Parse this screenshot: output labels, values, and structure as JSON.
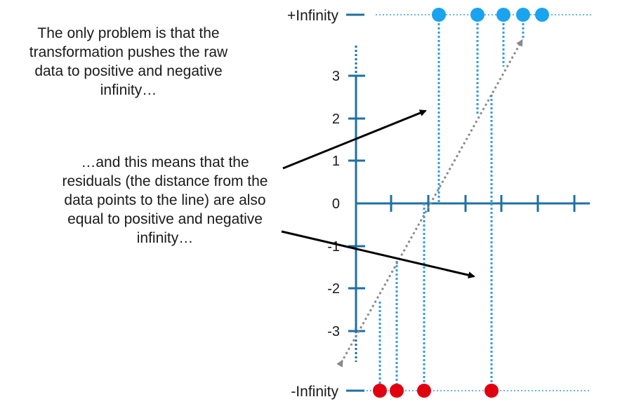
{
  "captions": {
    "top": "The only problem is that the\ntransformation pushes the raw\ndata to positive and negative\ninfinity…",
    "middle": "…and this means that the\nresiduals (the distance from the\ndata points to the line) are also\nequal to positive and negative\ninfinity…"
  },
  "labels": {
    "plus_infinity": "+Infinity",
    "minus_infinity": "-Infinity"
  },
  "y_axis": {
    "ticks": [
      "3",
      "2",
      "1",
      "0",
      "-1",
      "-2",
      "-3"
    ]
  },
  "colors": {
    "axis": "#1f6fa3",
    "dotted_line": "#2f9ee0",
    "blue_point": "#1aa3ef",
    "red_point": "#e0000f",
    "fit_line": "#8a8a8a",
    "arrow": "#000000"
  },
  "data_points": {
    "positive_infinity_count": 5,
    "negative_infinity_count": 4
  }
}
